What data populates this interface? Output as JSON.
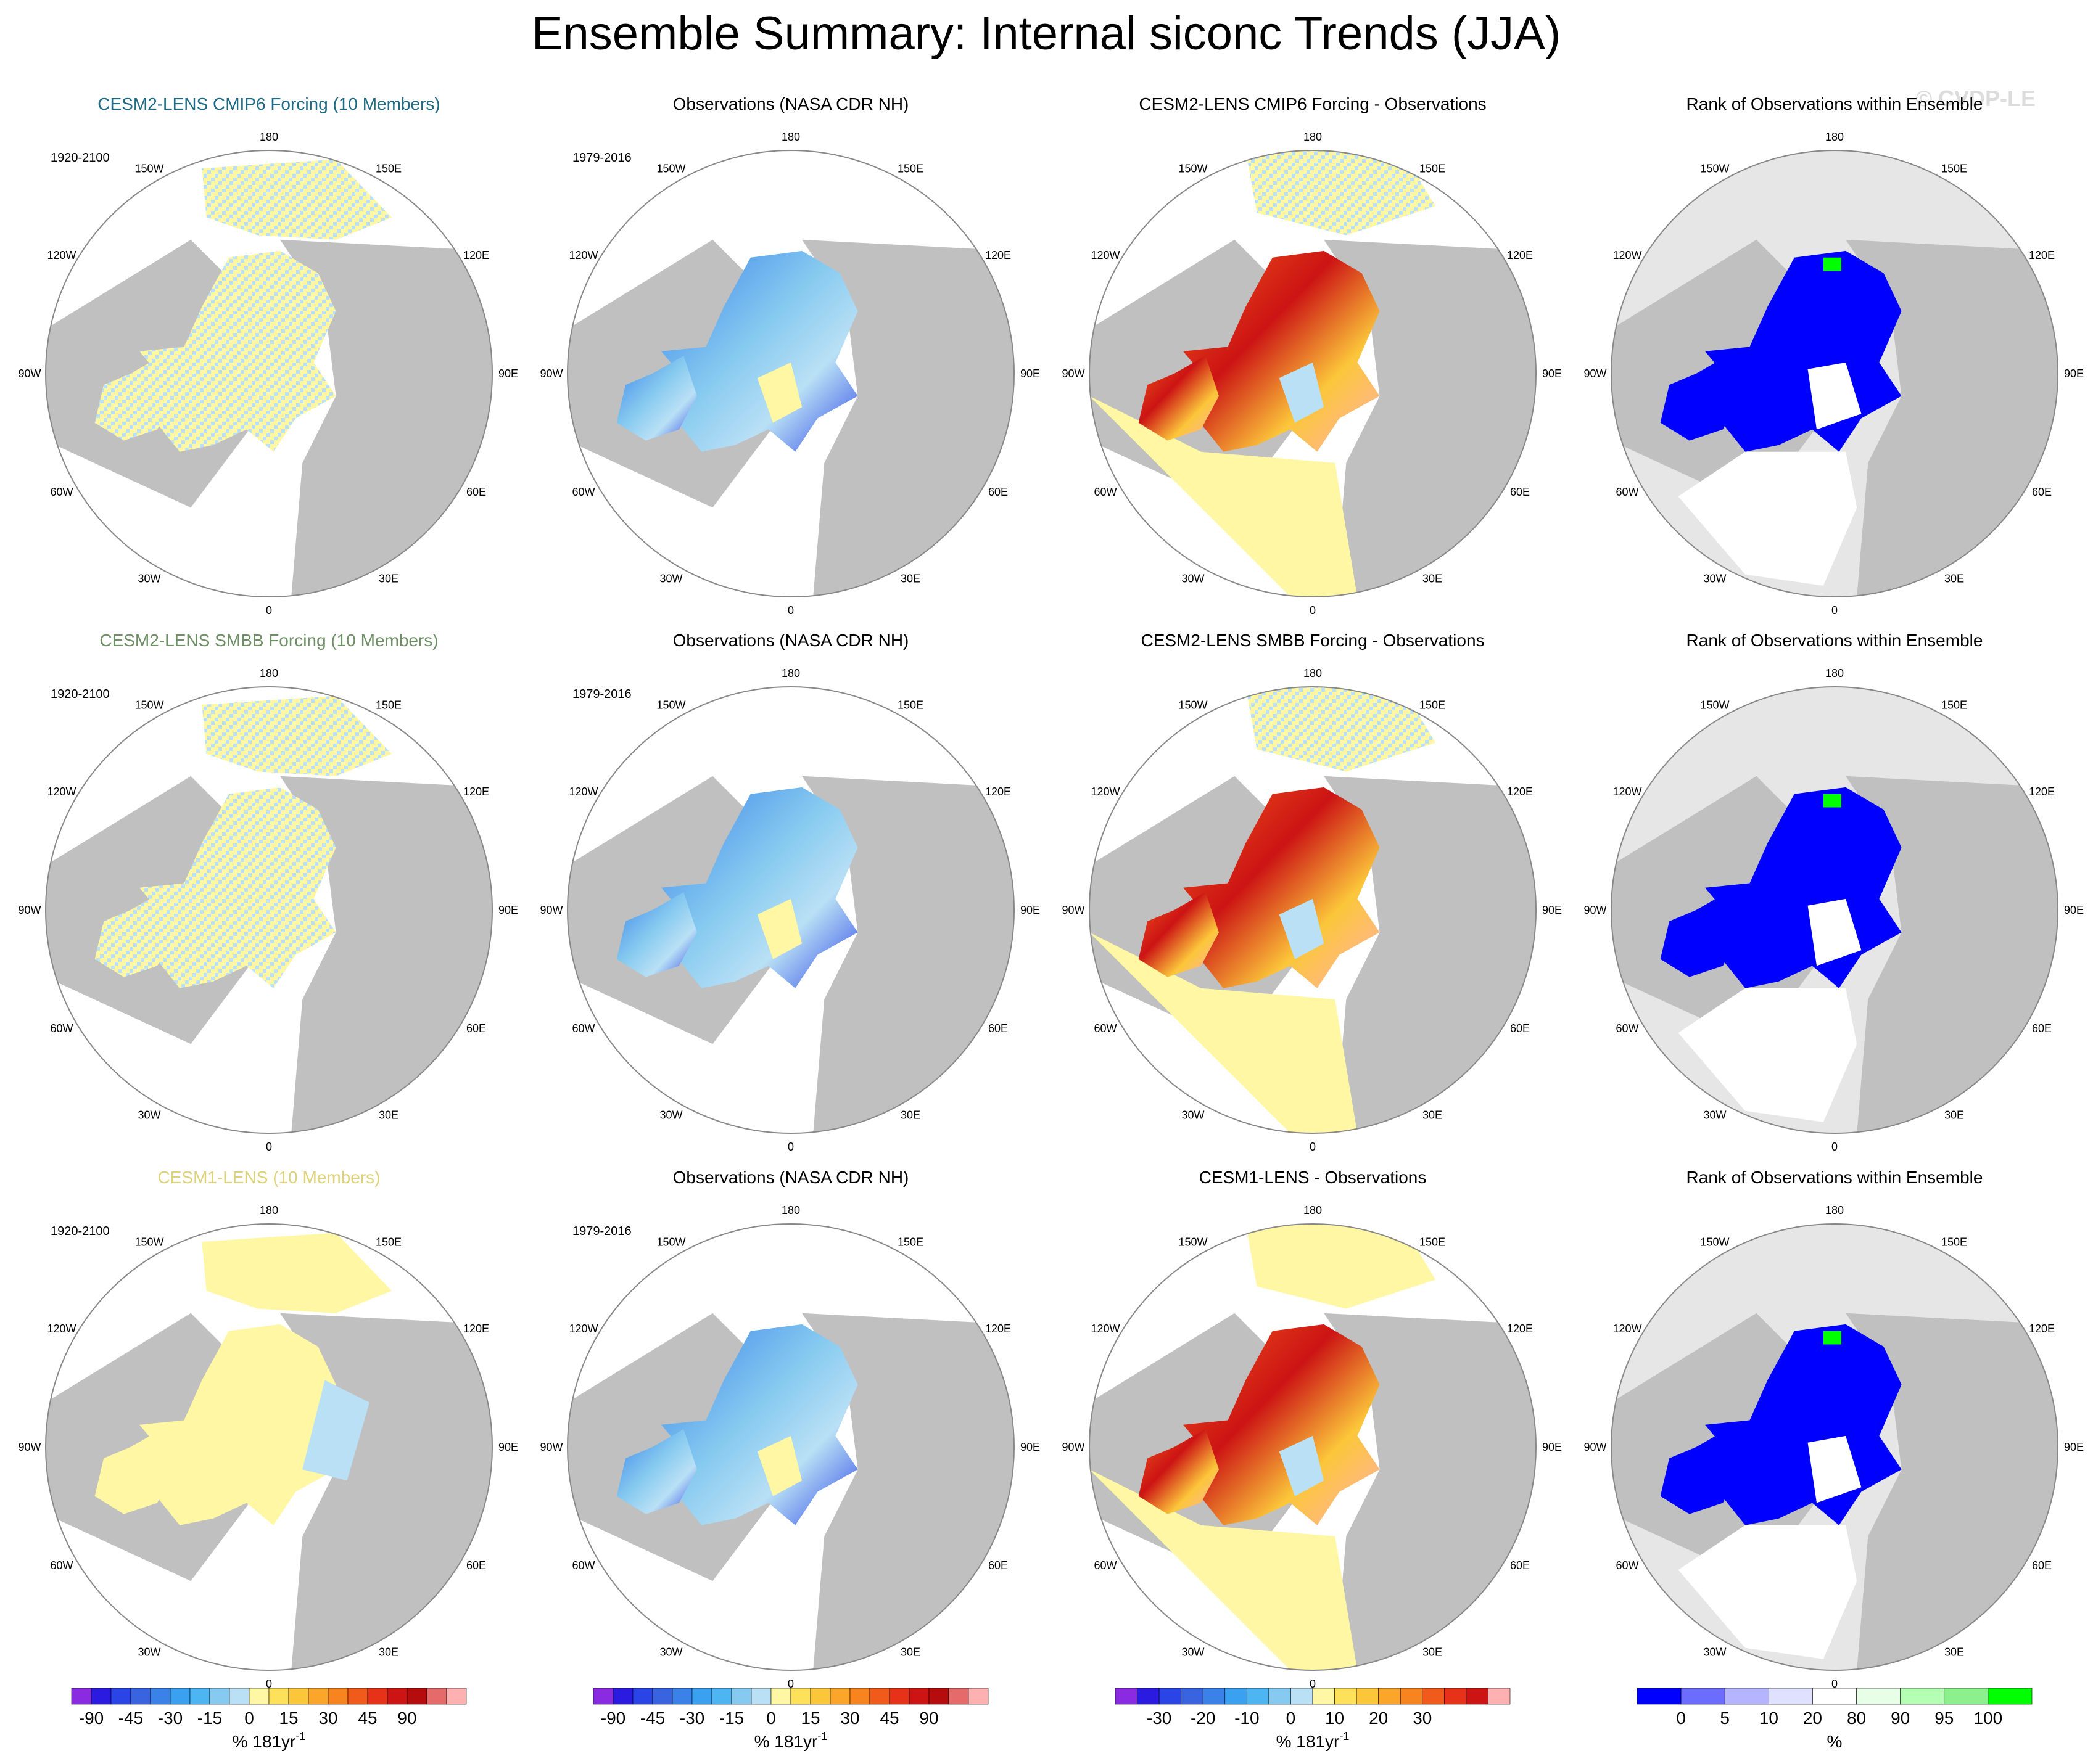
{
  "title": "Ensemble Summary: Internal siconc Trends (JJA)",
  "watermark": "© CVDP-LE",
  "colors": {
    "land": "#c0c0c0",
    "outside": "#e6e6e6",
    "ocean": "#ffffff",
    "ring": "#888888",
    "text": "#000000"
  },
  "lon_labels": [
    "180",
    "150E",
    "120E",
    "90E",
    "60E",
    "30E",
    "0",
    "30W",
    "60W",
    "90W",
    "120W",
    "150W"
  ],
  "rows": [
    {
      "model_title": "CESM2-LENS CMIP6 Forcing (10 Members)",
      "model_color": "#1d6a82",
      "model_period": "1920-2100",
      "obs_title": "Observations (NASA CDR NH)",
      "obs_period": "1979-2016",
      "diff_title": "CESM2-LENS CMIP6 Forcing - Observations",
      "rank_title": "Rank of Observations within Ensemble"
    },
    {
      "model_title": "CESM2-LENS SMBB Forcing (10 Members)",
      "model_color": "#6f8f66",
      "model_period": "1920-2100",
      "obs_title": "Observations (NASA CDR NH)",
      "obs_period": "1979-2016",
      "diff_title": "CESM2-LENS SMBB Forcing - Observations",
      "rank_title": "Rank of Observations within Ensemble"
    },
    {
      "model_title": "CESM1-LENS (10 Members)",
      "model_color": "#ddd27a",
      "model_period": "1920-2100",
      "obs_title": "Observations (NASA CDR NH)",
      "obs_period": "1979-2016",
      "diff_title": "CESM1-LENS - Observations",
      "rank_title": "Rank of Observations within Ensemble"
    }
  ],
  "colorbars": [
    {
      "name": "trend",
      "colors": [
        "#8a2be2",
        "#2b1ae0",
        "#2a44e6",
        "#3a63e0",
        "#3b82e8",
        "#3aa0f0",
        "#4db5f2",
        "#86caf0",
        "#b9e0f5",
        "#fff7a3",
        "#fde15a",
        "#fcc63a",
        "#fba62a",
        "#f88420",
        "#f05a1a",
        "#e53218",
        "#cc1414",
        "#b50d0d",
        "#e56a6a",
        "#ffb0b0"
      ],
      "labels": [
        "-90",
        "-45",
        "-30",
        "-15",
        "0",
        "15",
        "30",
        "45",
        "90"
      ],
      "label_pos": [
        1,
        3,
        5,
        7,
        9,
        11,
        13,
        15,
        17
      ],
      "units": "% 181yr",
      "units_sup": "-1"
    },
    {
      "name": "trend-obs",
      "colors": [
        "#8a2be2",
        "#2b1ae0",
        "#2a44e6",
        "#3a63e0",
        "#3b82e8",
        "#3aa0f0",
        "#4db5f2",
        "#86caf0",
        "#b9e0f5",
        "#fff7a3",
        "#fde15a",
        "#fcc63a",
        "#fba62a",
        "#f88420",
        "#f05a1a",
        "#e53218",
        "#cc1414",
        "#b50d0d",
        "#e56a6a",
        "#ffb0b0"
      ],
      "labels": [
        "-90",
        "-45",
        "-30",
        "-15",
        "0",
        "15",
        "30",
        "45",
        "90"
      ],
      "label_pos": [
        1,
        3,
        5,
        7,
        9,
        11,
        13,
        15,
        17
      ],
      "units": "% 181yr",
      "units_sup": "-1"
    },
    {
      "name": "difference",
      "colors": [
        "#8a2be2",
        "#2b1ae0",
        "#2a44e6",
        "#3a63e0",
        "#3b82e8",
        "#3aa0f0",
        "#4db5f2",
        "#86caf0",
        "#b9e0f5",
        "#fff7a3",
        "#fde15a",
        "#fcc63a",
        "#fba62a",
        "#f88420",
        "#f05a1a",
        "#e53218",
        "#cc1414",
        "#ffb0b0"
      ],
      "labels": [
        "-30",
        "-20",
        "-10",
        "0",
        "10",
        "20",
        "30"
      ],
      "label_pos": [
        2,
        4,
        6,
        8,
        10,
        12,
        14
      ],
      "units": "% 181yr",
      "units_sup": "-1"
    },
    {
      "name": "rank",
      "colors": [
        "#0000ff",
        "#6c6cff",
        "#b4b4ff",
        "#e0e0ff",
        "#ffffff",
        "#e6ffe6",
        "#b4ffb4",
        "#8cf08c",
        "#00ff00"
      ],
      "labels": [
        "0",
        "5",
        "10",
        "20",
        "80",
        "90",
        "95",
        "100"
      ],
      "label_pos": [
        1,
        2,
        3,
        4,
        5,
        6,
        7,
        8
      ],
      "units": "%",
      "units_sup": ""
    }
  ]
}
